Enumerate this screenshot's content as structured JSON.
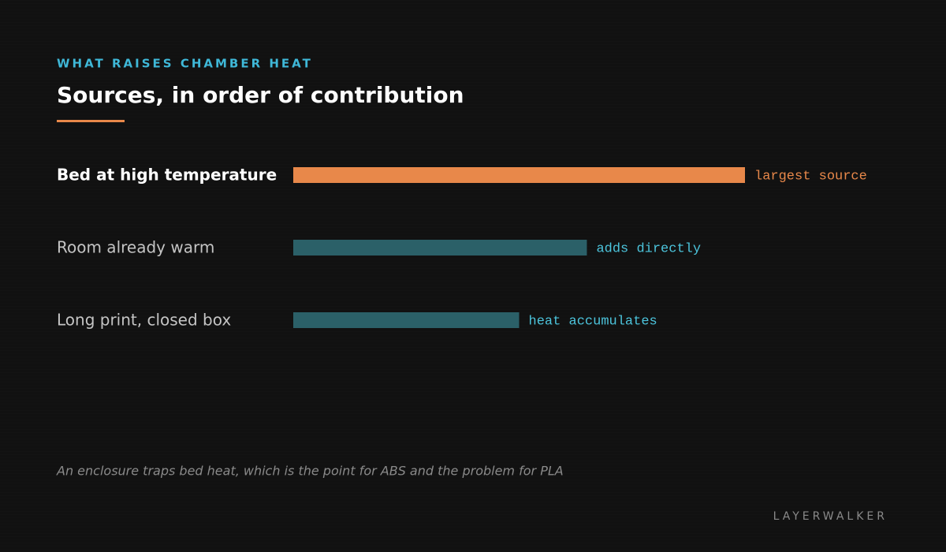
{
  "chart_data": {
    "type": "bar",
    "orientation": "horizontal",
    "eyebrow": "WHAT RAISES CHAMBER HEAT",
    "title": "Sources, in order of contribution",
    "categories": [
      "Bed at high temperature",
      "Room already warm",
      "Long print, closed box"
    ],
    "values": [
      100,
      65,
      50
    ],
    "xlim": [
      0,
      100
    ],
    "colors": [
      "#e8884a",
      "#2b6068",
      "#2b6068"
    ],
    "annotations": [
      "largest source",
      "adds directly",
      "heat accumulates"
    ],
    "annotation_colors": [
      "#e8884a",
      "#4cc4dc",
      "#4cc4dc"
    ],
    "highlight": 0,
    "footnote": "An enclosure traps bed heat, which is the point for ABS and the problem for PLA",
    "brand": "LAYERWALKER"
  }
}
